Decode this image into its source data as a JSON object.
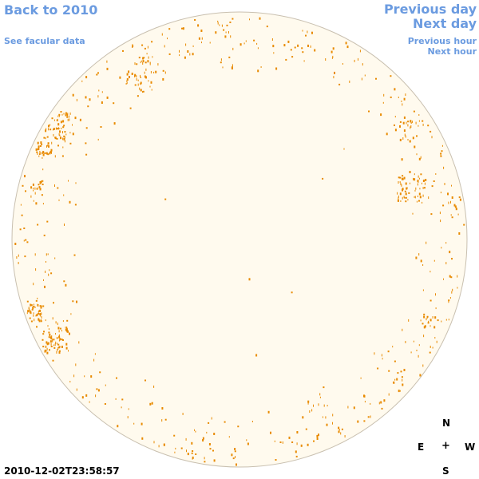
{
  "nav": {
    "back_label": "Back to 2010",
    "facular_label": "See facular data",
    "prev_day_label": "Previous day",
    "next_day_label": "Next day",
    "prev_hour_label": "Previous hour",
    "next_hour_label": "Next hour"
  },
  "timestamp": "2010-12-02T23:58:57",
  "compass": {
    "north": "N",
    "east": "E",
    "center": "+",
    "west": "W",
    "south": "S"
  },
  "colors": {
    "link": "#6b9be0",
    "disc_fill": "#fffaee",
    "disc_stroke": "#c9c0b0",
    "speckle": "#e88a00"
  },
  "disc": {
    "description_icon": "solar-disc"
  }
}
